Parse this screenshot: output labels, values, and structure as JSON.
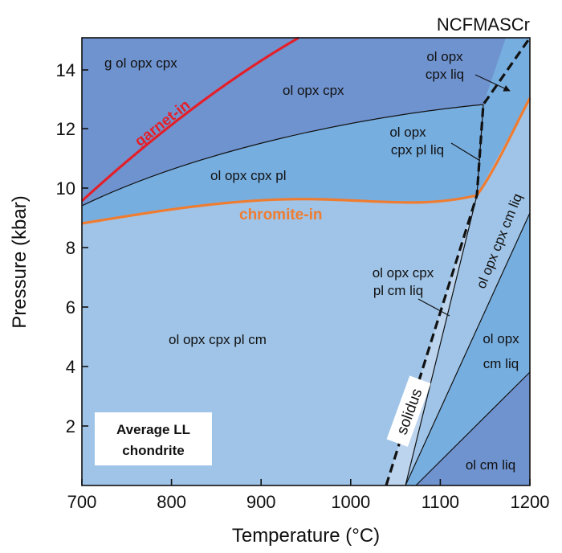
{
  "system": "NCFMASCr",
  "axes": {
    "xlabel": "Temperature (°C)",
    "ylabel": "Pressure (kbar)",
    "xticks": [
      "700",
      "800",
      "900",
      "1000",
      "1100",
      "1200"
    ],
    "yticks": [
      "2",
      "4",
      "6",
      "8",
      "10",
      "12",
      "14"
    ]
  },
  "colors": {
    "dark_field": "#6f93cf",
    "mid_field": "#77aee0",
    "light_field": "#9fc4e7",
    "pale_field": "#bcd4ee",
    "garnet_line": "#e3202a",
    "chromite_line": "#f07c30",
    "solidus_line": "#111111"
  },
  "fields": {
    "g_ol_opx_cpx": "g ol opx cpx",
    "ol_opx_cpx": "ol opx cpx",
    "ol_opx_cpx_liq": [
      "ol opx",
      "cpx liq"
    ],
    "ol_opx_cpx_pl_liq": [
      "ol opx",
      "cpx pl liq"
    ],
    "ol_opx_cpx_pl": "ol opx cpx pl",
    "ol_opx_cpx_cm_liq": "ol opx cpx cm liq",
    "ol_opx_cpx_pl_cm_liq": [
      "ol opx cpx",
      "pl cm liq"
    ],
    "ol_opx_cpx_pl_cm": "ol opx cpx pl cm",
    "ol_opx_cm_liq": [
      "ol opx",
      "cm liq"
    ],
    "ol_cm_liq": "ol cm liq"
  },
  "curves": {
    "garnet_in": "garnet-in",
    "chromite_in": "chromite-in",
    "solidus": "solidus"
  },
  "sample_box": [
    "Average LL",
    "chondrite"
  ]
}
